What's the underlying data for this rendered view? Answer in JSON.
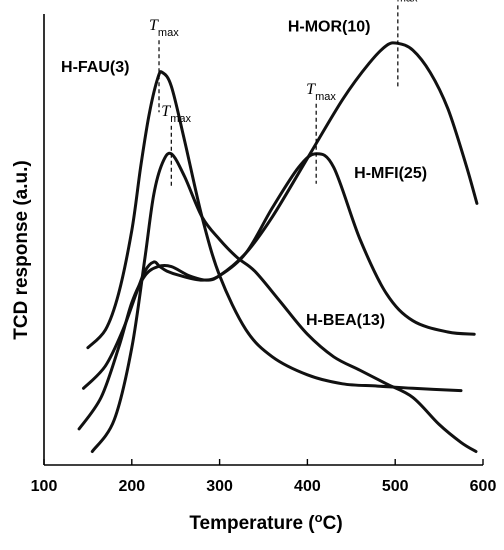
{
  "chart_data": {
    "type": "line",
    "title": "",
    "xlabel": "Temperature (",
    "xlabel_sup": "o",
    "xlabel_unit": "C)",
    "ylabel": "TCD response (a.u.)",
    "xlim": [
      100,
      600
    ],
    "x_ticks": [
      "100",
      "200",
      "300",
      "400",
      "500",
      "600"
    ],
    "y_ticks_shown": false,
    "tmax_text": "T",
    "tmax_sub": "max",
    "series": [
      {
        "name": "H-FAU(3)",
        "tmax": 231,
        "x": [
          150,
          170,
          185,
          200,
          210,
          220,
          230,
          235,
          245,
          260,
          280,
          300,
          330,
          360,
          400,
          440,
          480,
          520,
          575
        ],
        "y": [
          0.26,
          0.3,
          0.38,
          0.52,
          0.66,
          0.78,
          0.86,
          0.87,
          0.84,
          0.72,
          0.55,
          0.42,
          0.3,
          0.24,
          0.2,
          0.18,
          0.175,
          0.17,
          0.165
        ]
      },
      {
        "name": "H-MFI(25)",
        "tmax": 410,
        "x": [
          145,
          170,
          190,
          205,
          215,
          225,
          232,
          240,
          255,
          280,
          300,
          330,
          360,
          390,
          410,
          430,
          460,
          490,
          520,
          560,
          590
        ],
        "y": [
          0.17,
          0.22,
          0.3,
          0.38,
          0.43,
          0.45,
          0.44,
          0.43,
          0.42,
          0.41,
          0.42,
          0.47,
          0.57,
          0.66,
          0.69,
          0.66,
          0.5,
          0.38,
          0.32,
          0.295,
          0.29
        ]
      },
      {
        "name": "H-MOR(10)",
        "tmax": 503,
        "x": [
          140,
          165,
          185,
          200,
          215,
          230,
          245,
          265,
          285,
          300,
          330,
          360,
          400,
          440,
          470,
          490,
          503,
          520,
          540,
          560,
          580,
          593
        ],
        "y": [
          0.08,
          0.15,
          0.26,
          0.36,
          0.42,
          0.44,
          0.44,
          0.42,
          0.41,
          0.42,
          0.47,
          0.55,
          0.68,
          0.81,
          0.89,
          0.93,
          0.935,
          0.92,
          0.87,
          0.79,
          0.67,
          0.58
        ]
      },
      {
        "name": "H-BEA(13)",
        "tmax": 245,
        "x": [
          155,
          180,
          200,
          215,
          225,
          235,
          245,
          260,
          280,
          300,
          320,
          340,
          370,
          400,
          430,
          460,
          490,
          520,
          550,
          575,
          592
        ],
        "y": [
          0.03,
          0.1,
          0.26,
          0.46,
          0.6,
          0.67,
          0.69,
          0.64,
          0.55,
          0.5,
          0.46,
          0.43,
          0.36,
          0.29,
          0.24,
          0.21,
          0.18,
          0.15,
          0.09,
          0.05,
          0.03
        ]
      }
    ],
    "grid": false,
    "legend": "labels placed next to curves"
  }
}
